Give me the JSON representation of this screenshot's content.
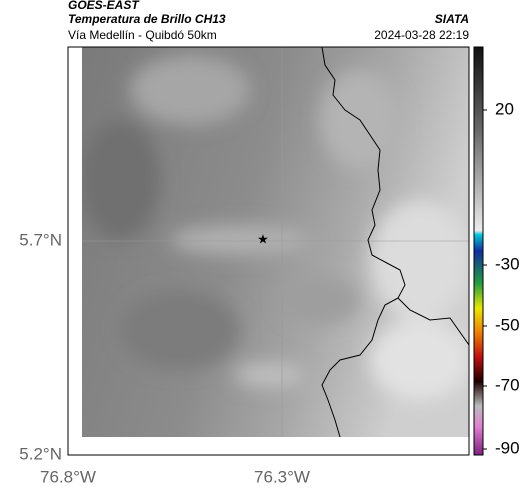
{
  "header": {
    "product": "GOES-EAST",
    "title": "Temperatura de Brillo CH13",
    "subtitle": "Vía Medellín - Quibdó 50km",
    "source": "SIATA",
    "datetime": "2024-03-28 22:19"
  },
  "map": {
    "lat_labels": [
      "5.7°N",
      "5.2°N"
    ],
    "lon_labels": [
      "76.8°W",
      "76.3°W"
    ]
  },
  "colorbar": {
    "tick_labels": [
      "20",
      "-30",
      "-50",
      "-70",
      "-90"
    ]
  }
}
